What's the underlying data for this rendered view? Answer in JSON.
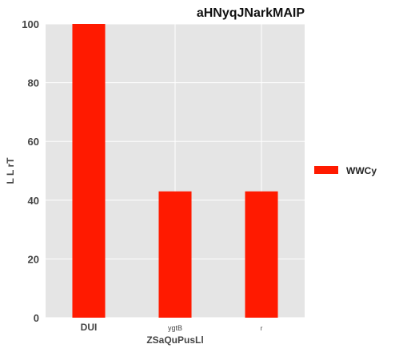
{
  "chart_data": {
    "type": "bar",
    "title": "aHNyqJNarkMAIP",
    "xlabel": "ZSaQuPusLl",
    "ylabel": "L L rT",
    "categories": [
      "DUI",
      "ygtB",
      "r"
    ],
    "series": [
      {
        "name": "WWCy",
        "values": [
          100,
          43,
          43
        ],
        "color": "#ff1a00"
      }
    ],
    "ylim": [
      0,
      100
    ],
    "yticks": [
      0,
      20,
      40,
      60,
      80,
      100
    ],
    "grid": true,
    "legend_position": "right",
    "background_color": "#e5e5e5",
    "grid_color": "#ffffff"
  }
}
